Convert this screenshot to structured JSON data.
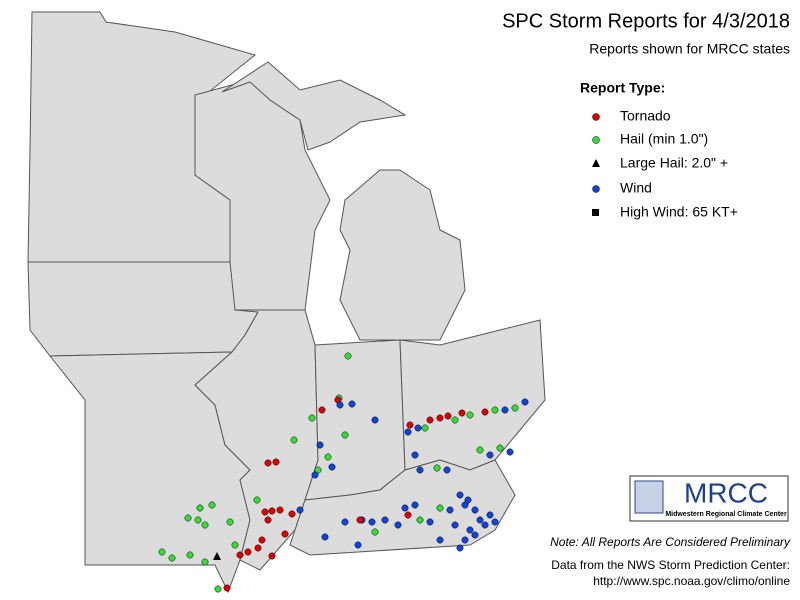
{
  "header": {
    "title": "SPC Storm Reports for 4/3/2018",
    "subtitle": "Reports shown for MRCC states"
  },
  "legend": {
    "title": "Report Type:",
    "items": [
      "Tornado",
      "Hail (min 1.0\")",
      "Large Hail: 2.0\" +",
      "Wind",
      "High Wind: 65 KT+"
    ]
  },
  "logo": {
    "name": "MRCC",
    "full_name": "Midwestern Regional Climate Center"
  },
  "footer": {
    "note": "Note: All Reports Are Considered Preliminary",
    "source": "Data from the NWS Storm Prediction Center:",
    "url": "http://www.spc.noaa.gov/climo/online"
  }
}
